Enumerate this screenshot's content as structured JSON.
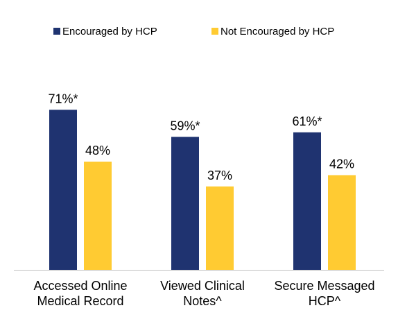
{
  "chart_data": {
    "type": "bar",
    "categories": [
      [
        "Accessed Online",
        "Medical Record"
      ],
      [
        "Viewed Clinical",
        "Notes^"
      ],
      [
        "Secure Messaged",
        "HCP^"
      ]
    ],
    "series": [
      {
        "name": "Encouraged by HCP",
        "color": "#1F3370",
        "values": [
          71,
          59,
          61
        ],
        "labels": [
          "71%*",
          "59%*",
          "61%*"
        ]
      },
      {
        "name": "Not Encouraged by HCP",
        "color": "#FFCB32",
        "values": [
          48,
          37,
          42
        ],
        "labels": [
          "48%",
          "37%",
          "42%"
        ]
      }
    ],
    "ylim": [
      0,
      100
    ],
    "grid": false,
    "legend": "top-center",
    "axis_color": "#BFBFBF"
  }
}
